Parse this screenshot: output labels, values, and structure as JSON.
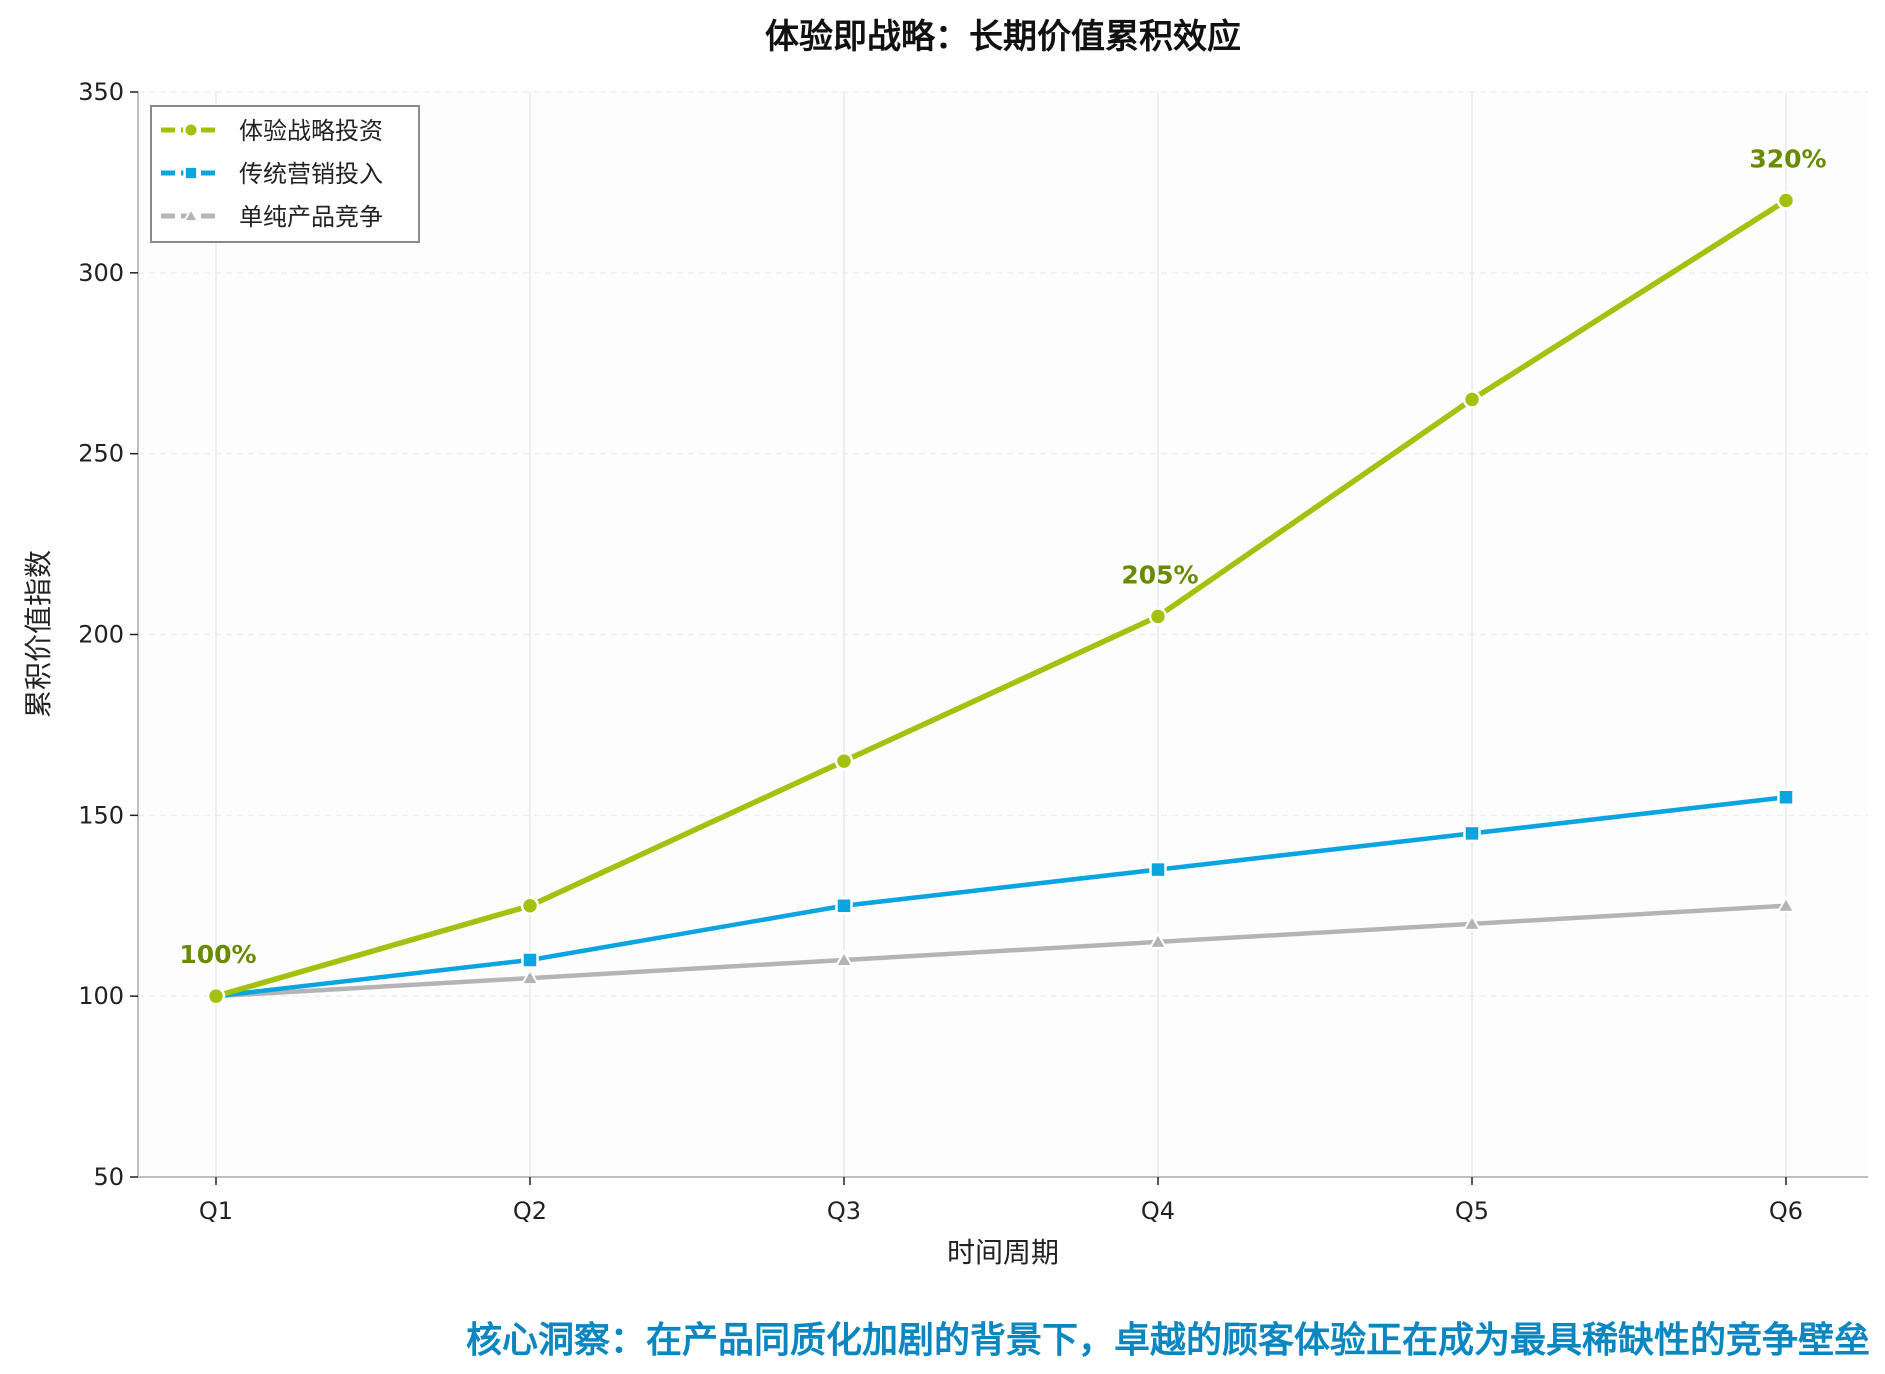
{
  "chart_data": {
    "type": "line",
    "title": "体验即战略：长期价值累积效应",
    "xlabel": "时间周期",
    "ylabel": "累积价值指数",
    "categories": [
      "Q1",
      "Q2",
      "Q3",
      "Q4",
      "Q5",
      "Q6"
    ],
    "ylim": [
      50,
      350
    ],
    "yticks": [
      50,
      100,
      150,
      200,
      250,
      300,
      350
    ],
    "grid": true,
    "legend_position": "top-left",
    "series": [
      {
        "name": "体验战略投资",
        "values": [
          100,
          125,
          165,
          205,
          265,
          320
        ],
        "color": "#a3c20f",
        "marker": "circle"
      },
      {
        "name": "传统营销投入",
        "values": [
          100,
          110,
          125,
          135,
          145,
          155
        ],
        "color": "#0aa4e0",
        "marker": "square"
      },
      {
        "name": "单纯产品竞争",
        "values": [
          100,
          105,
          110,
          115,
          120,
          125
        ],
        "color": "#b4b4b4",
        "marker": "triangle"
      }
    ],
    "annotations": [
      {
        "text": "100%",
        "x": "Q1",
        "y": 100
      },
      {
        "text": "205%",
        "x": "Q4",
        "y": 205
      },
      {
        "text": "320%",
        "x": "Q6",
        "y": 320
      }
    ],
    "annotation_color": "#6a8a00",
    "footer": "核心洞察：在产品同质化加剧的背景下，卓越的顾客体验正在成为最具稀缺性的竞争壁垒",
    "footer_color": "#0a86c0"
  }
}
